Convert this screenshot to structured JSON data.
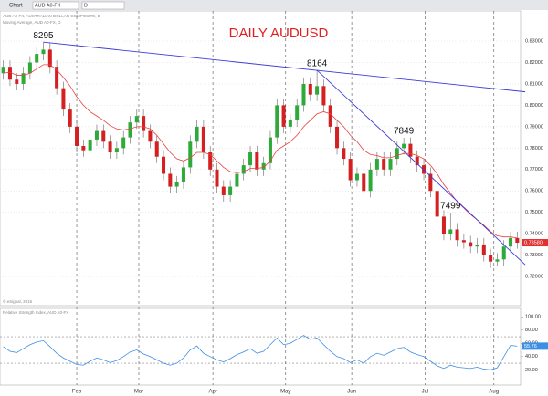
{
  "header": {
    "window_title": "Chart",
    "symbol": "AUD A0-FX",
    "interval": "D",
    "study_line": "AUD A0-FX, AUSTRALIAN DOLLAR COMPOSITE, D",
    "ma_line": "Moving Average, AUD A0-FX, D",
    "copyright": "© eSignal, 2015",
    "rsi_line": "Relative Strength Index, AUD A0-FX"
  },
  "chart_data": {
    "type": "candlestick",
    "title": "DAILY AUDUSD",
    "xlim": [
      -0.5,
      77.5
    ],
    "xticks": [
      {
        "value": 11,
        "label": "Feb"
      },
      {
        "value": 20.3,
        "label": "Mar"
      },
      {
        "value": 31.4,
        "label": "Apr"
      },
      {
        "value": 42.3,
        "label": "May"
      },
      {
        "value": 52.2,
        "label": "Jun"
      },
      {
        "value": 63.2,
        "label": "Jul"
      },
      {
        "value": 73.5,
        "label": "Aug"
      }
    ],
    "ylim": [
      0.7064,
      0.8428
    ],
    "yticks": [
      {
        "value": 0.72,
        "label": "0.72000"
      },
      {
        "value": 0.73,
        "label": "0.73000"
      },
      {
        "value": 0.74,
        "label": "0.74000"
      },
      {
        "value": 0.75,
        "label": "0.75000"
      },
      {
        "value": 0.76,
        "label": "0.76000"
      },
      {
        "value": 0.77,
        "label": "0.77000"
      },
      {
        "value": 0.78,
        "label": "0.78000"
      },
      {
        "value": 0.79,
        "label": "0.79000"
      },
      {
        "value": 0.8,
        "label": "0.80000"
      },
      {
        "value": 0.81,
        "label": "0.81000"
      },
      {
        "value": 0.82,
        "label": "0.82000"
      },
      {
        "value": 0.83,
        "label": "0.83000"
      }
    ],
    "grid": true,
    "up_color": "#2eaa3a",
    "down_color": "#d42020",
    "ma_color": "#e84040",
    "trend_color": "#3b3bd8",
    "rsi_color": "#3c8fe6",
    "open": [
      0.815,
      0.818,
      0.812,
      0.81,
      0.815,
      0.82,
      0.824,
      0.826,
      0.818,
      0.808,
      0.798,
      0.79,
      0.781,
      0.779,
      0.784,
      0.788,
      0.783,
      0.778,
      0.78,
      0.785,
      0.792,
      0.795,
      0.788,
      0.783,
      0.776,
      0.768,
      0.762,
      0.764,
      0.771,
      0.783,
      0.79,
      0.778,
      0.77,
      0.762,
      0.758,
      0.762,
      0.768,
      0.772,
      0.778,
      0.77,
      0.773,
      0.785,
      0.8,
      0.79,
      0.793,
      0.8,
      0.81,
      0.805,
      0.809,
      0.8,
      0.79,
      0.78,
      0.775,
      0.765,
      0.768,
      0.76,
      0.77,
      0.775,
      0.77,
      0.775,
      0.78,
      0.782,
      0.776,
      0.772,
      0.768,
      0.76,
      0.748,
      0.74,
      0.742,
      0.737,
      0.736,
      0.734,
      0.735,
      0.73,
      0.727,
      0.728,
      0.734,
      0.738
    ],
    "high": [
      0.821,
      0.821,
      0.815,
      0.818,
      0.823,
      0.827,
      0.8295,
      0.829,
      0.821,
      0.811,
      0.801,
      0.793,
      0.784,
      0.787,
      0.791,
      0.791,
      0.786,
      0.783,
      0.788,
      0.795,
      0.798,
      0.798,
      0.791,
      0.786,
      0.779,
      0.771,
      0.767,
      0.774,
      0.786,
      0.793,
      0.793,
      0.781,
      0.773,
      0.765,
      0.765,
      0.771,
      0.775,
      0.781,
      0.781,
      0.776,
      0.788,
      0.803,
      0.803,
      0.796,
      0.803,
      0.813,
      0.813,
      0.8164,
      0.812,
      0.803,
      0.793,
      0.783,
      0.778,
      0.771,
      0.771,
      0.773,
      0.778,
      0.778,
      0.778,
      0.783,
      0.7849,
      0.785,
      0.779,
      0.775,
      0.771,
      0.763,
      0.751,
      0.7499,
      0.745,
      0.74,
      0.739,
      0.738,
      0.738,
      0.733,
      0.731,
      0.737,
      0.741,
      0.741
    ],
    "low": [
      0.812,
      0.809,
      0.807,
      0.807,
      0.812,
      0.817,
      0.821,
      0.815,
      0.805,
      0.795,
      0.787,
      0.778,
      0.776,
      0.776,
      0.781,
      0.78,
      0.775,
      0.775,
      0.777,
      0.782,
      0.789,
      0.785,
      0.78,
      0.773,
      0.765,
      0.759,
      0.759,
      0.761,
      0.768,
      0.78,
      0.775,
      0.767,
      0.759,
      0.755,
      0.755,
      0.759,
      0.765,
      0.769,
      0.767,
      0.767,
      0.77,
      0.782,
      0.787,
      0.787,
      0.79,
      0.797,
      0.802,
      0.802,
      0.797,
      0.787,
      0.777,
      0.772,
      0.762,
      0.762,
      0.757,
      0.757,
      0.767,
      0.767,
      0.767,
      0.772,
      0.777,
      0.773,
      0.769,
      0.765,
      0.757,
      0.745,
      0.737,
      0.737,
      0.734,
      0.733,
      0.731,
      0.731,
      0.727,
      0.724,
      0.725,
      0.725,
      0.731,
      0.733
    ],
    "close": [
      0.818,
      0.812,
      0.81,
      0.815,
      0.82,
      0.824,
      0.826,
      0.818,
      0.808,
      0.798,
      0.79,
      0.781,
      0.779,
      0.784,
      0.788,
      0.783,
      0.778,
      0.78,
      0.785,
      0.792,
      0.795,
      0.788,
      0.783,
      0.776,
      0.768,
      0.762,
      0.764,
      0.771,
      0.783,
      0.79,
      0.778,
      0.77,
      0.762,
      0.758,
      0.762,
      0.768,
      0.772,
      0.778,
      0.77,
      0.773,
      0.785,
      0.8,
      0.79,
      0.793,
      0.8,
      0.81,
      0.805,
      0.809,
      0.8,
      0.79,
      0.78,
      0.775,
      0.765,
      0.768,
      0.76,
      0.77,
      0.775,
      0.77,
      0.775,
      0.78,
      0.782,
      0.776,
      0.772,
      0.768,
      0.76,
      0.748,
      0.74,
      0.742,
      0.737,
      0.736,
      0.734,
      0.735,
      0.73,
      0.727,
      0.728,
      0.734,
      0.738,
      0.7358
    ],
    "close_label": "0.73580",
    "ma": [
      0.815,
      0.8155,
      0.814,
      0.814,
      0.815,
      0.817,
      0.819,
      0.819,
      0.8165,
      0.813,
      0.809,
      0.804,
      0.8,
      0.797,
      0.795,
      0.793,
      0.7905,
      0.789,
      0.7885,
      0.789,
      0.79,
      0.79,
      0.789,
      0.786,
      0.782,
      0.778,
      0.775,
      0.774,
      0.7755,
      0.778,
      0.778,
      0.777,
      0.774,
      0.771,
      0.769,
      0.7685,
      0.769,
      0.7705,
      0.7705,
      0.771,
      0.774,
      0.779,
      0.781,
      0.783,
      0.786,
      0.79,
      0.793,
      0.796,
      0.797,
      0.796,
      0.793,
      0.79,
      0.786,
      0.783,
      0.779,
      0.777,
      0.7765,
      0.7755,
      0.7755,
      0.7765,
      0.7775,
      0.7775,
      0.7765,
      0.775,
      0.772,
      0.768,
      0.763,
      0.759,
      0.755,
      0.752,
      0.749,
      0.7465,
      0.744,
      0.741,
      0.739,
      0.7385,
      0.7385,
      0.738
    ],
    "trendlines": [
      {
        "points": [
          [
            6,
            0.8295
          ],
          [
            78.2,
            0.8063
          ]
        ]
      },
      {
        "points": [
          [
            47,
            0.8164
          ],
          [
            78.2,
            0.7255
          ]
        ]
      }
    ],
    "annotations": [
      {
        "text": "8295",
        "x": 6,
        "y": 0.8295
      },
      {
        "text": "8164",
        "x": 47,
        "y": 0.8164
      },
      {
        "text": "7849",
        "x": 60,
        "y": 0.7849
      },
      {
        "text": "7499",
        "x": 67,
        "y": 0.7499
      }
    ],
    "rsi": [
      55,
      48,
      46,
      52,
      58,
      62,
      64,
      55,
      45,
      38,
      33,
      28,
      27,
      33,
      38,
      35,
      31,
      34,
      40,
      47,
      50,
      44,
      40,
      35,
      30,
      27,
      30,
      38,
      50,
      56,
      45,
      40,
      35,
      32,
      37,
      43,
      47,
      52,
      45,
      48,
      58,
      68,
      58,
      60,
      66,
      72,
      66,
      68,
      58,
      48,
      40,
      37,
      31,
      35,
      30,
      40,
      45,
      42,
      47,
      52,
      54,
      47,
      43,
      40,
      33,
      26,
      22,
      27,
      24,
      23,
      22,
      24,
      21,
      20,
      23,
      40,
      57,
      55.76
    ],
    "rsi_label": "55.76",
    "rsi_ylim": [
      -3,
      110
    ],
    "rsi_yticks": [
      {
        "value": 100,
        "label": "100.00"
      },
      {
        "value": 80,
        "label": "80.00"
      },
      {
        "value": 60,
        "label": "60.00"
      },
      {
        "value": 40,
        "label": "40.00"
      },
      {
        "value": 20,
        "label": "20.00"
      }
    ],
    "rsi_levels": [
      70,
      30
    ]
  }
}
